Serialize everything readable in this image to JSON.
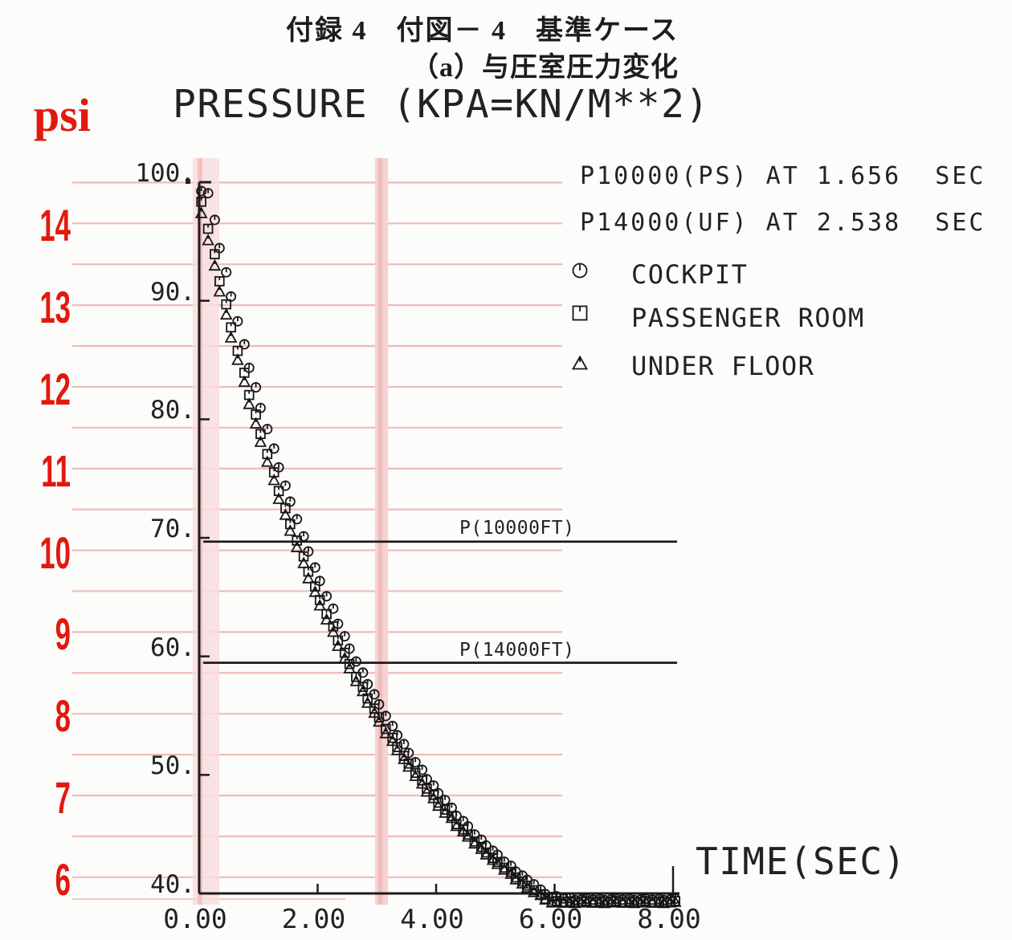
{
  "page": {
    "title_line1": "付録 4　付図－ 4　基準ケース",
    "title_line2": "（a）与圧室圧力変化"
  },
  "chart": {
    "psi_unit": "psi"
  },
  "chart_data": {
    "type": "scatter",
    "title": "PRESSURE (KPA=KN/M**2)",
    "xlabel": "TIME(SEC)",
    "y_unit": "kPa",
    "secondary_y_unit": "psi",
    "xlim": [
      0,
      8
    ],
    "ylim": [
      40,
      100
    ],
    "grid": "half-psi pink rules",
    "legend_position": "upper right",
    "x_ticks": {
      "labels": [
        "0.00",
        "2.00",
        "4.00",
        "6.00",
        "8.00"
      ],
      "values": [
        0,
        2,
        4,
        6,
        8
      ]
    },
    "y_ticks": {
      "labels": [
        "100.",
        "90.",
        "80.",
        "70.",
        "60.",
        "50.",
        "40."
      ],
      "values": [
        100,
        90,
        80,
        70,
        60,
        50,
        40
      ]
    },
    "psi_ticks": {
      "labels": [
        "14",
        "13",
        "12",
        "11",
        "10",
        "9",
        "8",
        "7",
        "6"
      ],
      "values": [
        14,
        13,
        12,
        11,
        10,
        9,
        8,
        7,
        6
      ]
    },
    "psi_gridlines": [
      14.5,
      14,
      13.5,
      13,
      12.5,
      12,
      11.5,
      11,
      10.5,
      10,
      9.5,
      9,
      8.5,
      8,
      7.5,
      7,
      6.5,
      6
    ],
    "kpa_per_psi": 6.89476,
    "ref_lines": [
      {
        "label": "P(10000FT)",
        "kpa": 69.68
      },
      {
        "label": "P(14000FT)",
        "kpa": 59.46
      }
    ],
    "events": [
      {
        "label": "P10000(PS) AT 1.656  SEC",
        "t": 1.656
      },
      {
        "label": "P14000(UF) AT 2.538  SEC",
        "t": 2.538
      }
    ],
    "sampling": {
      "t_start": 0.05,
      "t_step": 0.1,
      "n": 81
    },
    "series": [
      {
        "name": "COCKPIT",
        "marker": "circle",
        "values": [
          99.2,
          99.1,
          96.8,
          94.5,
          92.4,
          90.3,
          88.3,
          86.3,
          84.4,
          82.7,
          80.9,
          79.2,
          77.5,
          76.0,
          74.4,
          73.0,
          71.6,
          70.1,
          68.9,
          67.5,
          66.3,
          65.1,
          64.0,
          62.8,
          61.7,
          60.6,
          59.6,
          58.6,
          57.7,
          56.8,
          55.9,
          55.0,
          54.1,
          53.4,
          52.6,
          51.8,
          51.1,
          50.4,
          49.7,
          49.1,
          48.4,
          47.9,
          47.2,
          46.6,
          46.1,
          45.6,
          45.0,
          44.5,
          44.1,
          43.6,
          43.2,
          42.7,
          42.3,
          41.9,
          41.5,
          41.1,
          40.8,
          40.3,
          40.0,
          39.7,
          39.7,
          39.6,
          39.6,
          39.5,
          39.5,
          39.5,
          39.5,
          39.5,
          39.5,
          39.5,
          39.5,
          39.5,
          39.5,
          39.5,
          39.5,
          39.5,
          39.5,
          39.5,
          39.5,
          39.5,
          39.5
        ]
      },
      {
        "name": "PASSENGER ROOM",
        "marker": "square",
        "values": [
          98.3,
          96.1,
          93.9,
          91.7,
          89.7,
          87.7,
          85.8,
          83.9,
          82.1,
          80.4,
          78.7,
          77.1,
          75.5,
          74.0,
          72.5,
          71.1,
          69.8,
          68.4,
          67.2,
          65.9,
          64.7,
          63.6,
          62.5,
          61.4,
          60.3,
          59.3,
          58.3,
          57.4,
          56.5,
          55.6,
          54.8,
          53.9,
          53.1,
          52.4,
          51.6,
          50.9,
          50.2,
          49.5,
          48.9,
          48.3,
          47.6,
          47.1,
          46.5,
          45.9,
          45.4,
          44.9,
          44.4,
          43.9,
          43.5,
          43.0,
          42.6,
          42.2,
          41.8,
          41.4,
          41.0,
          40.6,
          40.3,
          39.9,
          39.6,
          39.3,
          39.3,
          39.3,
          39.3,
          39.3,
          39.3,
          39.3,
          39.3,
          39.3,
          39.3,
          39.3,
          39.3,
          39.3,
          39.3,
          39.3,
          39.3,
          39.3,
          39.3,
          39.3,
          39.3,
          39.3,
          39.3
        ]
      },
      {
        "name": "UNDER FLOOR",
        "marker": "triangle",
        "values": [
          97.3,
          95.1,
          92.9,
          90.8,
          88.8,
          86.8,
          85.0,
          83.1,
          81.3,
          79.6,
          78.0,
          76.4,
          74.8,
          73.3,
          71.9,
          70.5,
          69.2,
          67.8,
          66.6,
          65.4,
          64.2,
          63.1,
          62.0,
          60.9,
          59.8,
          58.9,
          57.9,
          57.0,
          56.1,
          55.2,
          54.4,
          53.5,
          52.8,
          52.1,
          51.3,
          50.6,
          49.9,
          49.2,
          48.6,
          48.0,
          47.3,
          46.8,
          46.3,
          45.7,
          45.2,
          44.7,
          44.2,
          43.7,
          43.3,
          42.8,
          42.4,
          42.0,
          41.6,
          41.2,
          40.8,
          40.4,
          40.1,
          39.8,
          39.5,
          39.2,
          39.2,
          39.2,
          39.2,
          39.2,
          39.2,
          39.2,
          39.2,
          39.2,
          39.2,
          39.2,
          39.2,
          39.2,
          39.2,
          39.2,
          39.2,
          39.2,
          39.2,
          39.2,
          39.2,
          39.2,
          39.2
        ]
      }
    ],
    "colors": {
      "ink": "#1c1c1c",
      "accent_red": "#e2190e",
      "pink_rule": "#efbaba",
      "pink_band": "#f8dddd"
    }
  }
}
